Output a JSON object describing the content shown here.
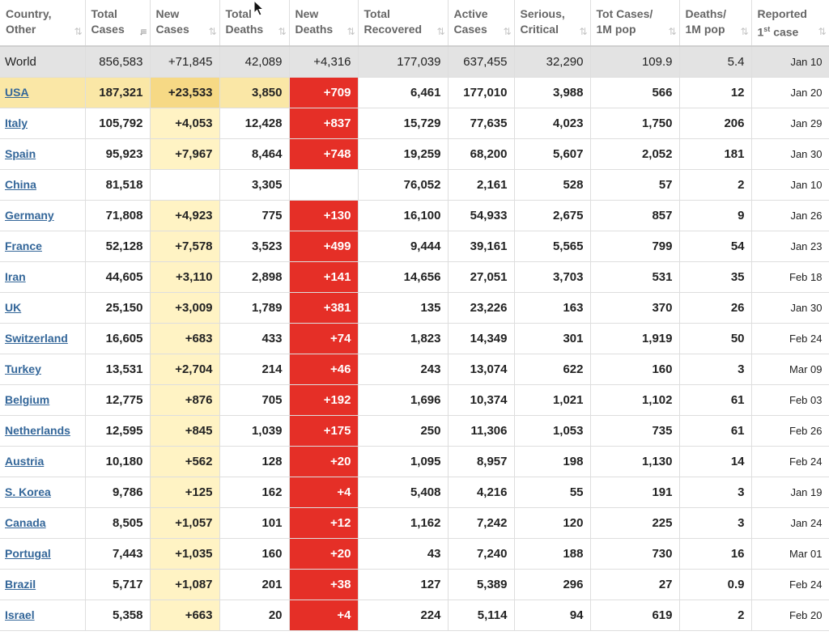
{
  "table": {
    "headers": [
      {
        "line1": "Country,",
        "line2": "Other",
        "sup": "",
        "line2_rest": "",
        "sort": "⇅",
        "active": false
      },
      {
        "line1": "Total",
        "line2": "Cases",
        "sup": "",
        "line2_rest": "",
        "sort": "↓≡",
        "active": true
      },
      {
        "line1": "New",
        "line2": "Cases",
        "sup": "",
        "line2_rest": "",
        "sort": "⇅",
        "active": false
      },
      {
        "line1": "Total",
        "line2": "Deaths",
        "sup": "",
        "line2_rest": "",
        "sort": "⇅",
        "active": false
      },
      {
        "line1": "New",
        "line2": "Deaths",
        "sup": "",
        "line2_rest": "",
        "sort": "⇅",
        "active": false
      },
      {
        "line1": "Total",
        "line2": "Recovered",
        "sup": "",
        "line2_rest": "",
        "sort": "⇅",
        "active": false
      },
      {
        "line1": "Active",
        "line2": "Cases",
        "sup": "",
        "line2_rest": "",
        "sort": "⇅",
        "active": false
      },
      {
        "line1": "Serious,",
        "line2": "Critical",
        "sup": "",
        "line2_rest": "",
        "sort": "⇅",
        "active": false
      },
      {
        "line1": "Tot Cases/",
        "line2": "1M pop",
        "sup": "",
        "line2_rest": "",
        "sort": "⇅",
        "active": false
      },
      {
        "line1": "Deaths/",
        "line2": "1M pop",
        "sup": "",
        "line2_rest": "",
        "sort": "⇅",
        "active": false
      },
      {
        "line1": "Reported",
        "line2": "1",
        "sup": "st",
        "line2_rest": " case",
        "sort": "⇅",
        "active": false
      }
    ],
    "world": [
      "World",
      "856,583",
      "+71,845",
      "42,089",
      "+4,316",
      "177,039",
      "637,455",
      "32,290",
      "109.9",
      "5.4",
      "Jan 10"
    ],
    "rows": [
      [
        "USA",
        "187,321",
        "+23,533",
        "3,850",
        "+709",
        "6,461",
        "177,010",
        "3,988",
        "566",
        "12",
        "Jan 20"
      ],
      [
        "Italy",
        "105,792",
        "+4,053",
        "12,428",
        "+837",
        "15,729",
        "77,635",
        "4,023",
        "1,750",
        "206",
        "Jan 29"
      ],
      [
        "Spain",
        "95,923",
        "+7,967",
        "8,464",
        "+748",
        "19,259",
        "68,200",
        "5,607",
        "2,052",
        "181",
        "Jan 30"
      ],
      [
        "China",
        "81,518",
        "",
        "3,305",
        "",
        "76,052",
        "2,161",
        "528",
        "57",
        "2",
        "Jan 10"
      ],
      [
        "Germany",
        "71,808",
        "+4,923",
        "775",
        "+130",
        "16,100",
        "54,933",
        "2,675",
        "857",
        "9",
        "Jan 26"
      ],
      [
        "France",
        "52,128",
        "+7,578",
        "3,523",
        "+499",
        "9,444",
        "39,161",
        "5,565",
        "799",
        "54",
        "Jan 23"
      ],
      [
        "Iran",
        "44,605",
        "+3,110",
        "2,898",
        "+141",
        "14,656",
        "27,051",
        "3,703",
        "531",
        "35",
        "Feb 18"
      ],
      [
        "UK",
        "25,150",
        "+3,009",
        "1,789",
        "+381",
        "135",
        "23,226",
        "163",
        "370",
        "26",
        "Jan 30"
      ],
      [
        "Switzerland",
        "16,605",
        "+683",
        "433",
        "+74",
        "1,823",
        "14,349",
        "301",
        "1,919",
        "50",
        "Feb 24"
      ],
      [
        "Turkey",
        "13,531",
        "+2,704",
        "214",
        "+46",
        "243",
        "13,074",
        "622",
        "160",
        "3",
        "Mar 09"
      ],
      [
        "Belgium",
        "12,775",
        "+876",
        "705",
        "+192",
        "1,696",
        "10,374",
        "1,021",
        "1,102",
        "61",
        "Feb 03"
      ],
      [
        "Netherlands",
        "12,595",
        "+845",
        "1,039",
        "+175",
        "250",
        "11,306",
        "1,053",
        "735",
        "61",
        "Feb 26"
      ],
      [
        "Austria",
        "10,180",
        "+562",
        "128",
        "+20",
        "1,095",
        "8,957",
        "198",
        "1,130",
        "14",
        "Feb 24"
      ],
      [
        "S. Korea",
        "9,786",
        "+125",
        "162",
        "+4",
        "5,408",
        "4,216",
        "55",
        "191",
        "3",
        "Jan 19"
      ],
      [
        "Canada",
        "8,505",
        "+1,057",
        "101",
        "+12",
        "1,162",
        "7,242",
        "120",
        "225",
        "3",
        "Jan 24"
      ],
      [
        "Portugal",
        "7,443",
        "+1,035",
        "160",
        "+20",
        "43",
        "7,240",
        "188",
        "730",
        "16",
        "Mar 01"
      ],
      [
        "Brazil",
        "5,717",
        "+1,087",
        "201",
        "+38",
        "127",
        "5,389",
        "296",
        "27",
        "0.9",
        "Feb 24"
      ],
      [
        "Israel",
        "5,358",
        "+663",
        "20",
        "+4",
        "224",
        "5,114",
        "94",
        "619",
        "2",
        "Feb 20"
      ]
    ],
    "highlighted_row": "USA"
  },
  "colors": {
    "new_cases_bg": "#fff3c4",
    "new_deaths_bg": "#e52f27",
    "highlight_bg": "#fae7a6",
    "world_bg": "#e3e3e3",
    "link": "#336699"
  },
  "cursor": {
    "icon": "mouse-pointer-icon"
  }
}
